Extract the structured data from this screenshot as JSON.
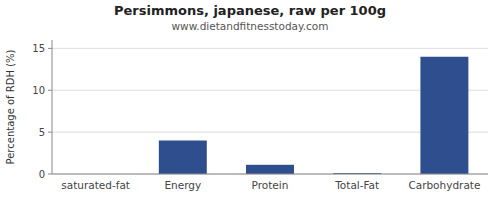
{
  "chart_data": {
    "type": "bar",
    "title": "Persimmons, japanese, raw per 100g",
    "subtitle": "www.dietandfitnesstoday.com",
    "categories": [
      "saturated-fat",
      "Energy",
      "Protein",
      "Total-Fat",
      "Carbohydrate"
    ],
    "values": [
      0.0,
      4.0,
      1.1,
      0.1,
      14.0
    ],
    "color": "#2e4e8e",
    "ylabel": "Percentage of RDH (%)",
    "ylim": [
      0,
      16
    ],
    "yticks": [
      0,
      5,
      10,
      15
    ],
    "grid": true
  }
}
